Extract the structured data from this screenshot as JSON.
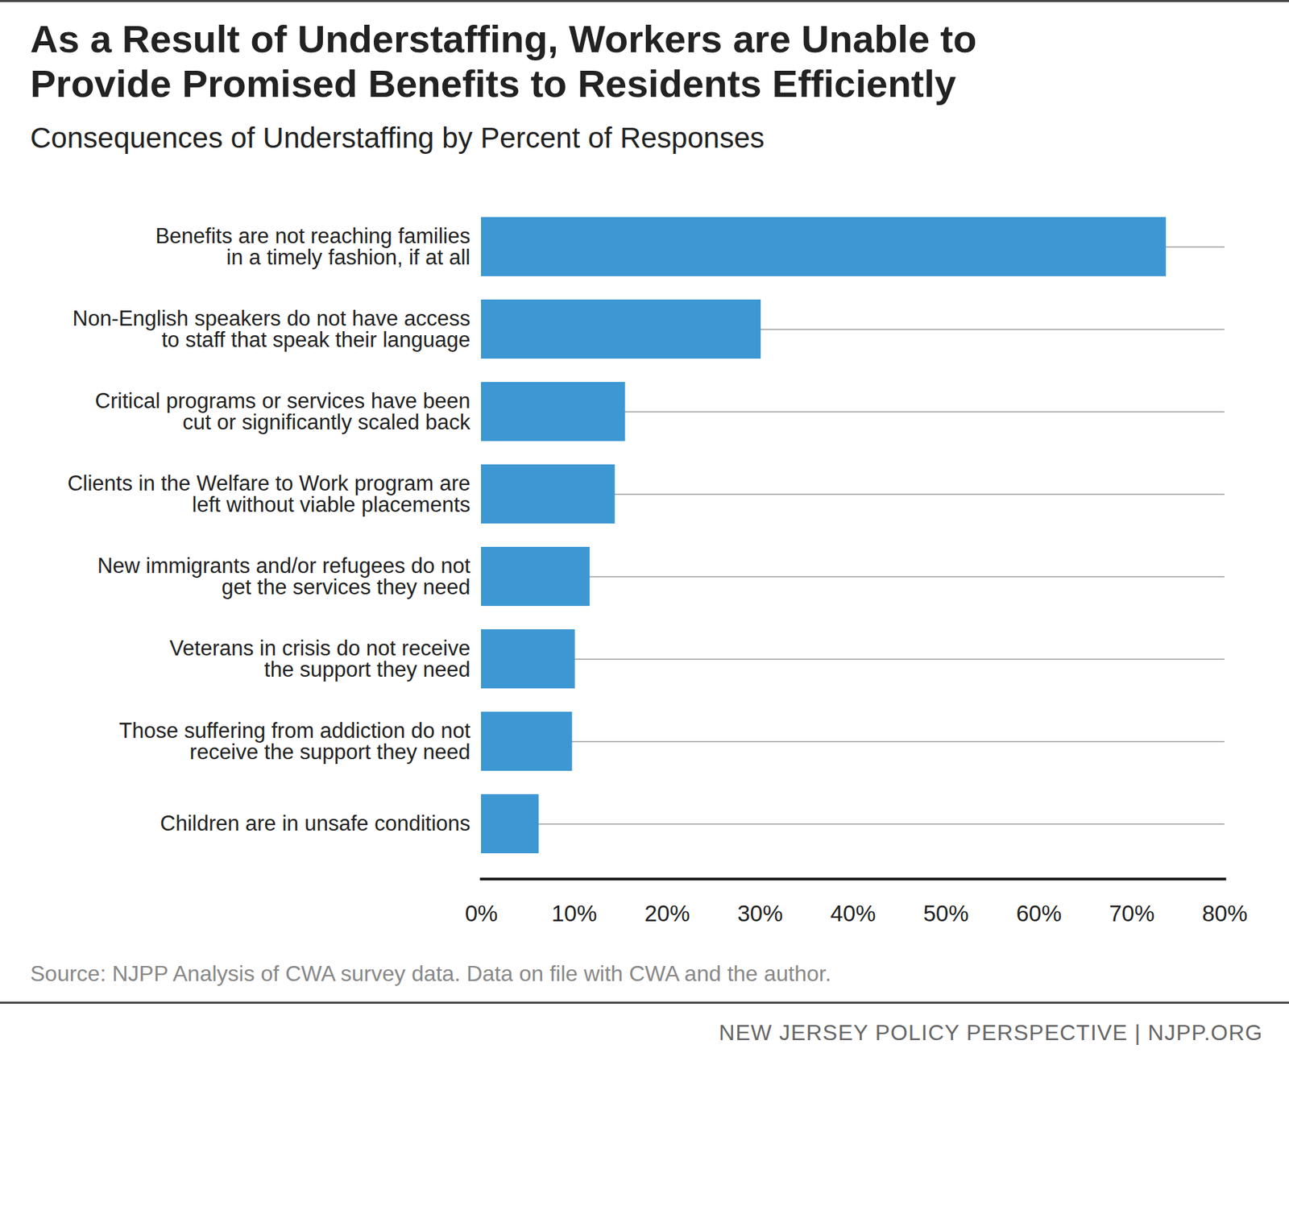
{
  "chart_data": {
    "type": "bar",
    "orientation": "horizontal",
    "title": "As a Result of Understaffing, Workers are Unable to Provide Promised Benefits to Residents Efficiently",
    "subtitle": "Consequences of Understaffing by Percent of Responses",
    "categories": [
      "Benefits are not reaching families\nin a timely fashion, if at all",
      "Non-English speakers do not have access\nto staff that speak their language",
      "Critical programs or services have been\ncut or significantly scaled back",
      "Clients in the Welfare to Work program are\nleft without viable placements",
      "New immigrants and/or refugees do not\nget the services they need",
      "Veterans in crisis do not receive\nthe support they need",
      "Those suffering from addiction do not\nreceive the support they need",
      "Children are in unsafe conditions"
    ],
    "values": [
      73.7,
      30.1,
      15.5,
      14.4,
      11.7,
      10.1,
      9.8,
      6.2
    ],
    "color": "#3d97d3",
    "xlim": [
      0,
      80
    ],
    "xticks": [
      {
        "value": 0,
        "label": "0%"
      },
      {
        "value": 10,
        "label": "10%"
      },
      {
        "value": 20,
        "label": "20%"
      },
      {
        "value": 30,
        "label": "30%"
      },
      {
        "value": 40,
        "label": "40%"
      },
      {
        "value": 50,
        "label": "50%"
      },
      {
        "value": 60,
        "label": "60%"
      },
      {
        "value": 70,
        "label": "70%"
      },
      {
        "value": 80,
        "label": "80%"
      }
    ],
    "grid": true,
    "source": "Source: NJPP Analysis of CWA survey data. Data on file with CWA and the author.",
    "footer": "NEW JERSEY POLICY PERSPECTIVE | NJPP.ORG"
  }
}
